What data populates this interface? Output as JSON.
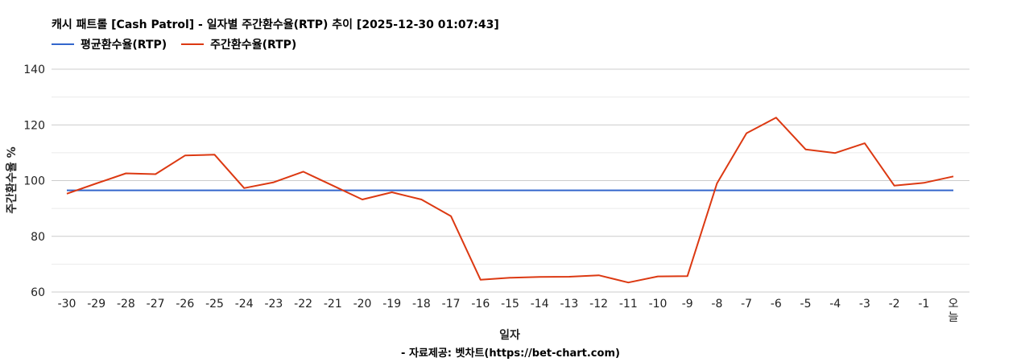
{
  "chart_data": {
    "type": "line",
    "title": "캐시 패트롤 [Cash Patrol] - 일자별 주간환수율(RTP) 추이 [2025-12-30 01:07:43]",
    "xlabel": "일자",
    "ylabel": "주간환수율 %",
    "categories": [
      "-30",
      "-29",
      "-28",
      "-27",
      "-26",
      "-25",
      "-24",
      "-23",
      "-22",
      "-21",
      "-20",
      "-19",
      "-18",
      "-17",
      "-16",
      "-15",
      "-14",
      "-13",
      "-12",
      "-11",
      "-10",
      "-9",
      "-8",
      "-7",
      "-6",
      "-5",
      "-4",
      "-3",
      "-2",
      "-1",
      "오늘"
    ],
    "ylim": [
      60,
      140
    ],
    "yticks": [
      60,
      80,
      100,
      120,
      140
    ],
    "grid": true,
    "legend_position": "top-left",
    "series": [
      {
        "name": "평균환수율(RTP)",
        "color": "#3366cc",
        "values": [
          96.5,
          96.5,
          96.5,
          96.5,
          96.5,
          96.5,
          96.5,
          96.5,
          96.5,
          96.5,
          96.5,
          96.5,
          96.5,
          96.5,
          96.5,
          96.5,
          96.5,
          96.5,
          96.5,
          96.5,
          96.5,
          96.5,
          96.5,
          96.5,
          96.5,
          96.5,
          96.5,
          96.5,
          96.5,
          96.5,
          96.5
        ]
      },
      {
        "name": "주간환수율(RTP)",
        "color": "#dc3912",
        "values": [
          95.3,
          99.0,
          102.6,
          102.3,
          109.0,
          109.3,
          97.3,
          99.4,
          103.2,
          98.2,
          93.2,
          95.8,
          93.2,
          87.2,
          64.4,
          65.1,
          65.4,
          65.5,
          66.0,
          63.4,
          65.6,
          65.7,
          99.0,
          117.0,
          122.6,
          111.2,
          109.9,
          113.4,
          98.2,
          99.2,
          101.5
        ]
      }
    ]
  },
  "source_note": "- 자료제공: 벳차트(https://bet-chart.com)"
}
